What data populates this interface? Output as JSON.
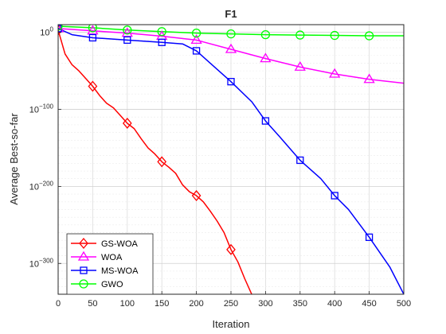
{
  "chart_data": {
    "type": "line",
    "title": "F1",
    "xlabel": "Iteration",
    "ylabel": "Average Best-so-far",
    "xlim": [
      0,
      500
    ],
    "ylim_log10": [
      -340,
      10
    ],
    "yscale": "log",
    "grid": true,
    "legend_position": "bottom-left",
    "x_ticks": [
      0,
      50,
      100,
      150,
      200,
      250,
      300,
      350,
      400,
      450,
      500
    ],
    "y_tick_exponents": [
      0,
      -100,
      -200,
      -300
    ],
    "y_tick_base": "10",
    "series": [
      {
        "name": "GS-WOA",
        "color": "#ff0000",
        "marker": "diamond",
        "x": [
          0,
          10,
          20,
          30,
          40,
          50,
          60,
          70,
          80,
          90,
          100,
          110,
          120,
          130,
          140,
          150,
          160,
          170,
          180,
          190,
          200,
          210,
          220,
          230,
          240,
          250,
          260,
          270,
          280
        ],
        "log10_y": [
          3,
          -28,
          -42,
          -50,
          -60,
          -70,
          -82,
          -92,
          -98,
          -108,
          -118,
          -125,
          -138,
          -150,
          -158,
          -168,
          -175,
          -183,
          -198,
          -207,
          -212,
          -220,
          -232,
          -245,
          -260,
          -282,
          -298,
          -320,
          -340
        ]
      },
      {
        "name": "WOA",
        "color": "#ff00ff",
        "marker": "triangle",
        "x": [
          0,
          50,
          100,
          150,
          200,
          250,
          300,
          350,
          400,
          450,
          500
        ],
        "log10_y": [
          5,
          2,
          -1,
          -5,
          -10,
          -22,
          -34,
          -45,
          -54,
          -61,
          -66
        ]
      },
      {
        "name": "MS-WOA",
        "color": "#0000ff",
        "marker": "square",
        "x": [
          0,
          20,
          50,
          100,
          150,
          180,
          200,
          220,
          250,
          280,
          300,
          320,
          350,
          380,
          400,
          420,
          450,
          480,
          500
        ],
        "log10_y": [
          5,
          -3,
          -7,
          -10,
          -13,
          -15,
          -24,
          -40,
          -64,
          -90,
          -115,
          -135,
          -166,
          -190,
          -212,
          -230,
          -266,
          -305,
          -340
        ]
      },
      {
        "name": "GWO",
        "color": "#00ff00",
        "marker": "circle",
        "x": [
          0,
          50,
          100,
          150,
          200,
          250,
          300,
          350,
          400,
          450,
          500
        ],
        "log10_y": [
          8,
          6,
          3,
          1,
          -1,
          -2,
          -3,
          -3.5,
          -4,
          -4.5,
          -4.5
        ]
      }
    ],
    "markers_x": {
      "GS-WOA": [
        0,
        50,
        100,
        150,
        200,
        250
      ],
      "WOA": [
        0,
        50,
        100,
        150,
        200,
        250,
        300,
        350,
        400,
        450
      ],
      "MS-WOA": [
        0,
        50,
        100,
        150,
        200,
        250,
        300,
        350,
        400,
        450
      ],
      "GWO": [
        0,
        50,
        100,
        150,
        200,
        250,
        300,
        350,
        400,
        450
      ]
    }
  }
}
